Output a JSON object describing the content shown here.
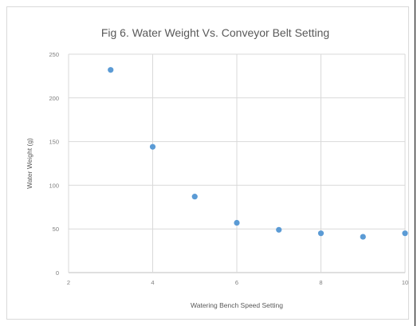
{
  "chart_data": {
    "type": "scatter",
    "title": "Fig 6. Water Weight Vs. Conveyor Belt Setting",
    "xlabel": "Watering Bench Speed Setting",
    "ylabel": "Water Weight (g)",
    "xlim": [
      2,
      10
    ],
    "ylim": [
      0,
      250
    ],
    "x_ticks": [
      "2",
      "4",
      "6",
      "8",
      "10"
    ],
    "y_ticks": [
      "0",
      "50",
      "100",
      "150",
      "200",
      "250"
    ],
    "grid": true,
    "legend": "none",
    "marker_color": "#5b9bd5",
    "series": [
      {
        "points": [
          {
            "x": 3,
            "y": 232
          },
          {
            "x": 4,
            "y": 144
          },
          {
            "x": 5,
            "y": 87
          },
          {
            "x": 6,
            "y": 57
          },
          {
            "x": 7,
            "y": 49
          },
          {
            "x": 8,
            "y": 45
          },
          {
            "x": 9,
            "y": 41
          },
          {
            "x": 10,
            "y": 45
          }
        ]
      }
    ]
  }
}
